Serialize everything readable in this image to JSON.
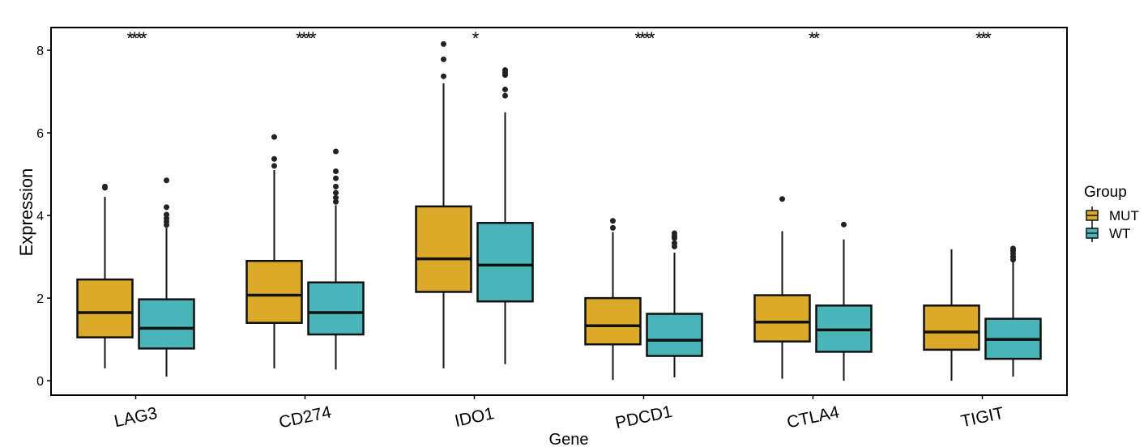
{
  "chart_data": {
    "type": "boxplot",
    "xlabel": "Gene",
    "ylabel": "Expression",
    "ylim": [
      -0.35,
      8.55
    ],
    "yticks": [
      0,
      2,
      4,
      6,
      8
    ],
    "categories": [
      "LAG3",
      "CD274",
      "IDO1",
      "PDCD1",
      "CTLA4",
      "TIGIT"
    ],
    "legend": {
      "title": "Group",
      "position": "right"
    },
    "grid": false,
    "series": [
      {
        "name": "MUT",
        "color": "#DBAA29",
        "boxes": [
          {
            "gene": "LAG3",
            "min": 0.3,
            "q1": 1.05,
            "median": 1.65,
            "q3": 2.45,
            "max": 4.45,
            "outliers": [
              4.7,
              4.67
            ]
          },
          {
            "gene": "CD274",
            "min": 0.3,
            "q1": 1.4,
            "median": 2.07,
            "q3": 2.9,
            "max": 5.1,
            "outliers": [
              5.2,
              5.37,
              5.9
            ]
          },
          {
            "gene": "IDO1",
            "min": 0.3,
            "q1": 2.15,
            "median": 2.95,
            "q3": 4.22,
            "max": 7.2,
            "outliers": [
              7.37,
              7.78,
              8.15
            ]
          },
          {
            "gene": "PDCD1",
            "min": 0.02,
            "q1": 0.88,
            "median": 1.33,
            "q3": 2.0,
            "max": 3.6,
            "outliers": [
              3.7,
              3.87
            ]
          },
          {
            "gene": "CTLA4",
            "min": 0.05,
            "q1": 0.95,
            "median": 1.42,
            "q3": 2.07,
            "max": 3.62,
            "outliers": [
              4.4
            ]
          },
          {
            "gene": "TIGIT",
            "min": 0.0,
            "q1": 0.75,
            "median": 1.18,
            "q3": 1.82,
            "max": 3.18,
            "outliers": []
          }
        ]
      },
      {
        "name": "WT",
        "color": "#4AB5B8",
        "boxes": [
          {
            "gene": "LAG3",
            "min": 0.1,
            "q1": 0.78,
            "median": 1.27,
            "q3": 1.97,
            "max": 3.7,
            "outliers": [
              3.77,
              3.85,
              3.93,
              4.02,
              4.2,
              4.85
            ]
          },
          {
            "gene": "CD274",
            "min": 0.27,
            "q1": 1.12,
            "median": 1.65,
            "q3": 2.38,
            "max": 4.25,
            "outliers": [
              4.33,
              4.43,
              4.55,
              4.7,
              4.9,
              5.07,
              5.55
            ]
          },
          {
            "gene": "IDO1",
            "min": 0.4,
            "q1": 1.92,
            "median": 2.8,
            "q3": 3.82,
            "max": 6.5,
            "outliers": [
              6.9,
              7.05,
              7.4,
              7.46,
              7.52
            ]
          },
          {
            "gene": "PDCD1",
            "min": 0.08,
            "q1": 0.6,
            "median": 0.98,
            "q3": 1.62,
            "max": 3.1,
            "outliers": [
              3.25,
              3.33,
              3.45,
              3.5,
              3.57
            ]
          },
          {
            "gene": "CTLA4",
            "min": 0.0,
            "q1": 0.7,
            "median": 1.23,
            "q3": 1.82,
            "max": 3.42,
            "outliers": [
              3.78
            ]
          },
          {
            "gene": "TIGIT",
            "min": 0.1,
            "q1": 0.53,
            "median": 1.0,
            "q3": 1.5,
            "max": 2.87,
            "outliers": [
              2.93,
              3.0,
              3.08,
              3.15,
              3.2
            ]
          }
        ]
      }
    ],
    "significance": [
      {
        "gene": "LAG3",
        "label": "****"
      },
      {
        "gene": "CD274",
        "label": "****"
      },
      {
        "gene": "IDO1",
        "label": "*"
      },
      {
        "gene": "PDCD1",
        "label": "****"
      },
      {
        "gene": "CTLA4",
        "label": "**"
      },
      {
        "gene": "TIGIT",
        "label": "***"
      }
    ]
  }
}
